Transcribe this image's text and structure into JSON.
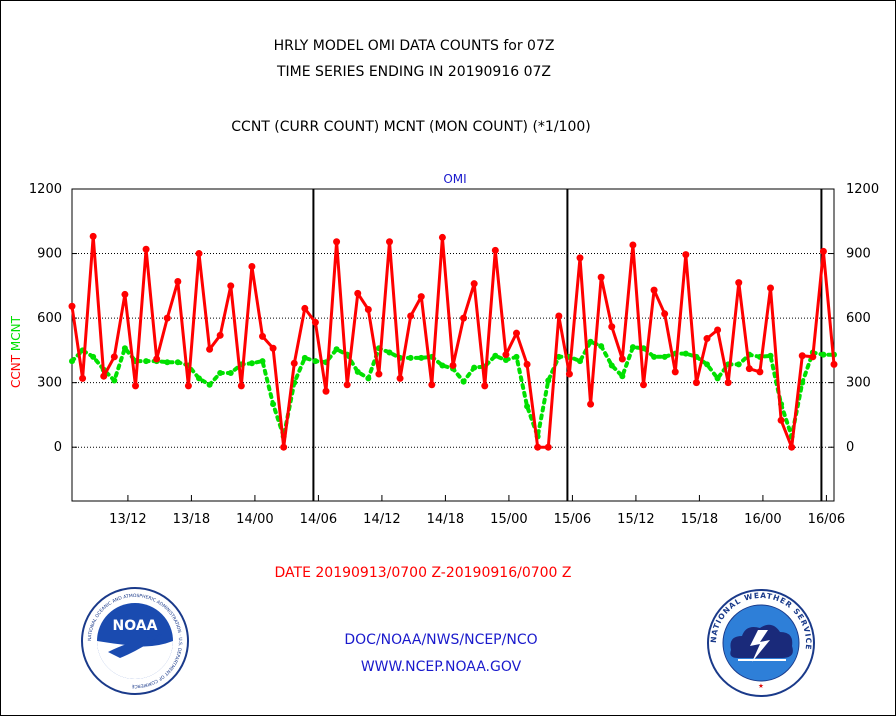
{
  "header": {
    "title_line1": "HRLY MODEL OMI DATA COUNTS for 07Z",
    "title_line2": "TIME SERIES ENDING IN 20190916 07Z",
    "subtitle": "CCNT (CURR COUNT) MCNT (MON COUNT) (*1/100)"
  },
  "footer": {
    "date_range": "DATE 20190913/0700 Z-20190916/0700 Z",
    "org": "DOC/NOAA/NWS/NCEP/NCO",
    "url": "WWW.NCEP.NOAA.GOV"
  },
  "logos": {
    "noaa_text": "NOAA",
    "noaa_ring_text": "NATIONAL OCEANIC AND ATMOSPHERIC ADMINISTRATION · U.S. DEPARTMENT OF COMMERCE",
    "nws_ring_text": "NATIONAL WEATHER SERVICE"
  },
  "colors": {
    "ccnt": "#ff0000",
    "mcnt": "#00e000",
    "label_blue": "#1a1acc",
    "grid": "#000000"
  },
  "chart_data": {
    "type": "line",
    "title": "OMI",
    "ylabel_left": [
      "CCNT",
      "MCNT"
    ],
    "ylim": [
      -250,
      1200
    ],
    "yticks": [
      0,
      300,
      600,
      900,
      1200
    ],
    "xticks": [
      {
        "label": "13/12",
        "hour": 5
      },
      {
        "label": "13/18",
        "hour": 11
      },
      {
        "label": "14/00",
        "hour": 17
      },
      {
        "label": "14/06",
        "hour": 23
      },
      {
        "label": "14/12",
        "hour": 29
      },
      {
        "label": "14/18",
        "hour": 35
      },
      {
        "label": "15/00",
        "hour": 41
      },
      {
        "label": "15/06",
        "hour": 47
      },
      {
        "label": "15/12",
        "hour": 53
      },
      {
        "label": "15/18",
        "hour": 59
      },
      {
        "label": "16/00",
        "hour": 65
      },
      {
        "label": "16/06",
        "hour": 71
      }
    ],
    "day_boundaries": [
      23,
      47,
      71
    ],
    "grid": "horizontal dotted",
    "series": [
      {
        "name": "CCNT",
        "style": "solid",
        "values": [
          655,
          320,
          980,
          330,
          420,
          710,
          285,
          920,
          410,
          600,
          770,
          285,
          900,
          455,
          520,
          750,
          285,
          840,
          515,
          460,
          0,
          390,
          645,
          580,
          260,
          955,
          290,
          715,
          640,
          340,
          955,
          320,
          610,
          700,
          290,
          975,
          380,
          600,
          760,
          285,
          915,
          430,
          530,
          385,
          0,
          0,
          610,
          340,
          880,
          200,
          790,
          560,
          410,
          940,
          290,
          730,
          620,
          350,
          895,
          300,
          505,
          545,
          300,
          765,
          365,
          350,
          740,
          125,
          0,
          425,
          420,
          910,
          385
        ]
      },
      {
        "name": "MCNT",
        "style": "dotted",
        "values": [
          400,
          450,
          420,
          360,
          310,
          460,
          400,
          400,
          400,
          395,
          395,
          380,
          320,
          290,
          345,
          345,
          385,
          390,
          400,
          200,
          50,
          300,
          415,
          400,
          395,
          455,
          430,
          350,
          320,
          460,
          440,
          415,
          415,
          415,
          420,
          380,
          365,
          305,
          370,
          375,
          425,
          405,
          420,
          190,
          50,
          310,
          420,
          420,
          400,
          490,
          470,
          380,
          330,
          465,
          460,
          420,
          420,
          435,
          435,
          420,
          385,
          320,
          385,
          385,
          430,
          420,
          425,
          200,
          50,
          300,
          440,
          430,
          430
        ]
      }
    ]
  }
}
